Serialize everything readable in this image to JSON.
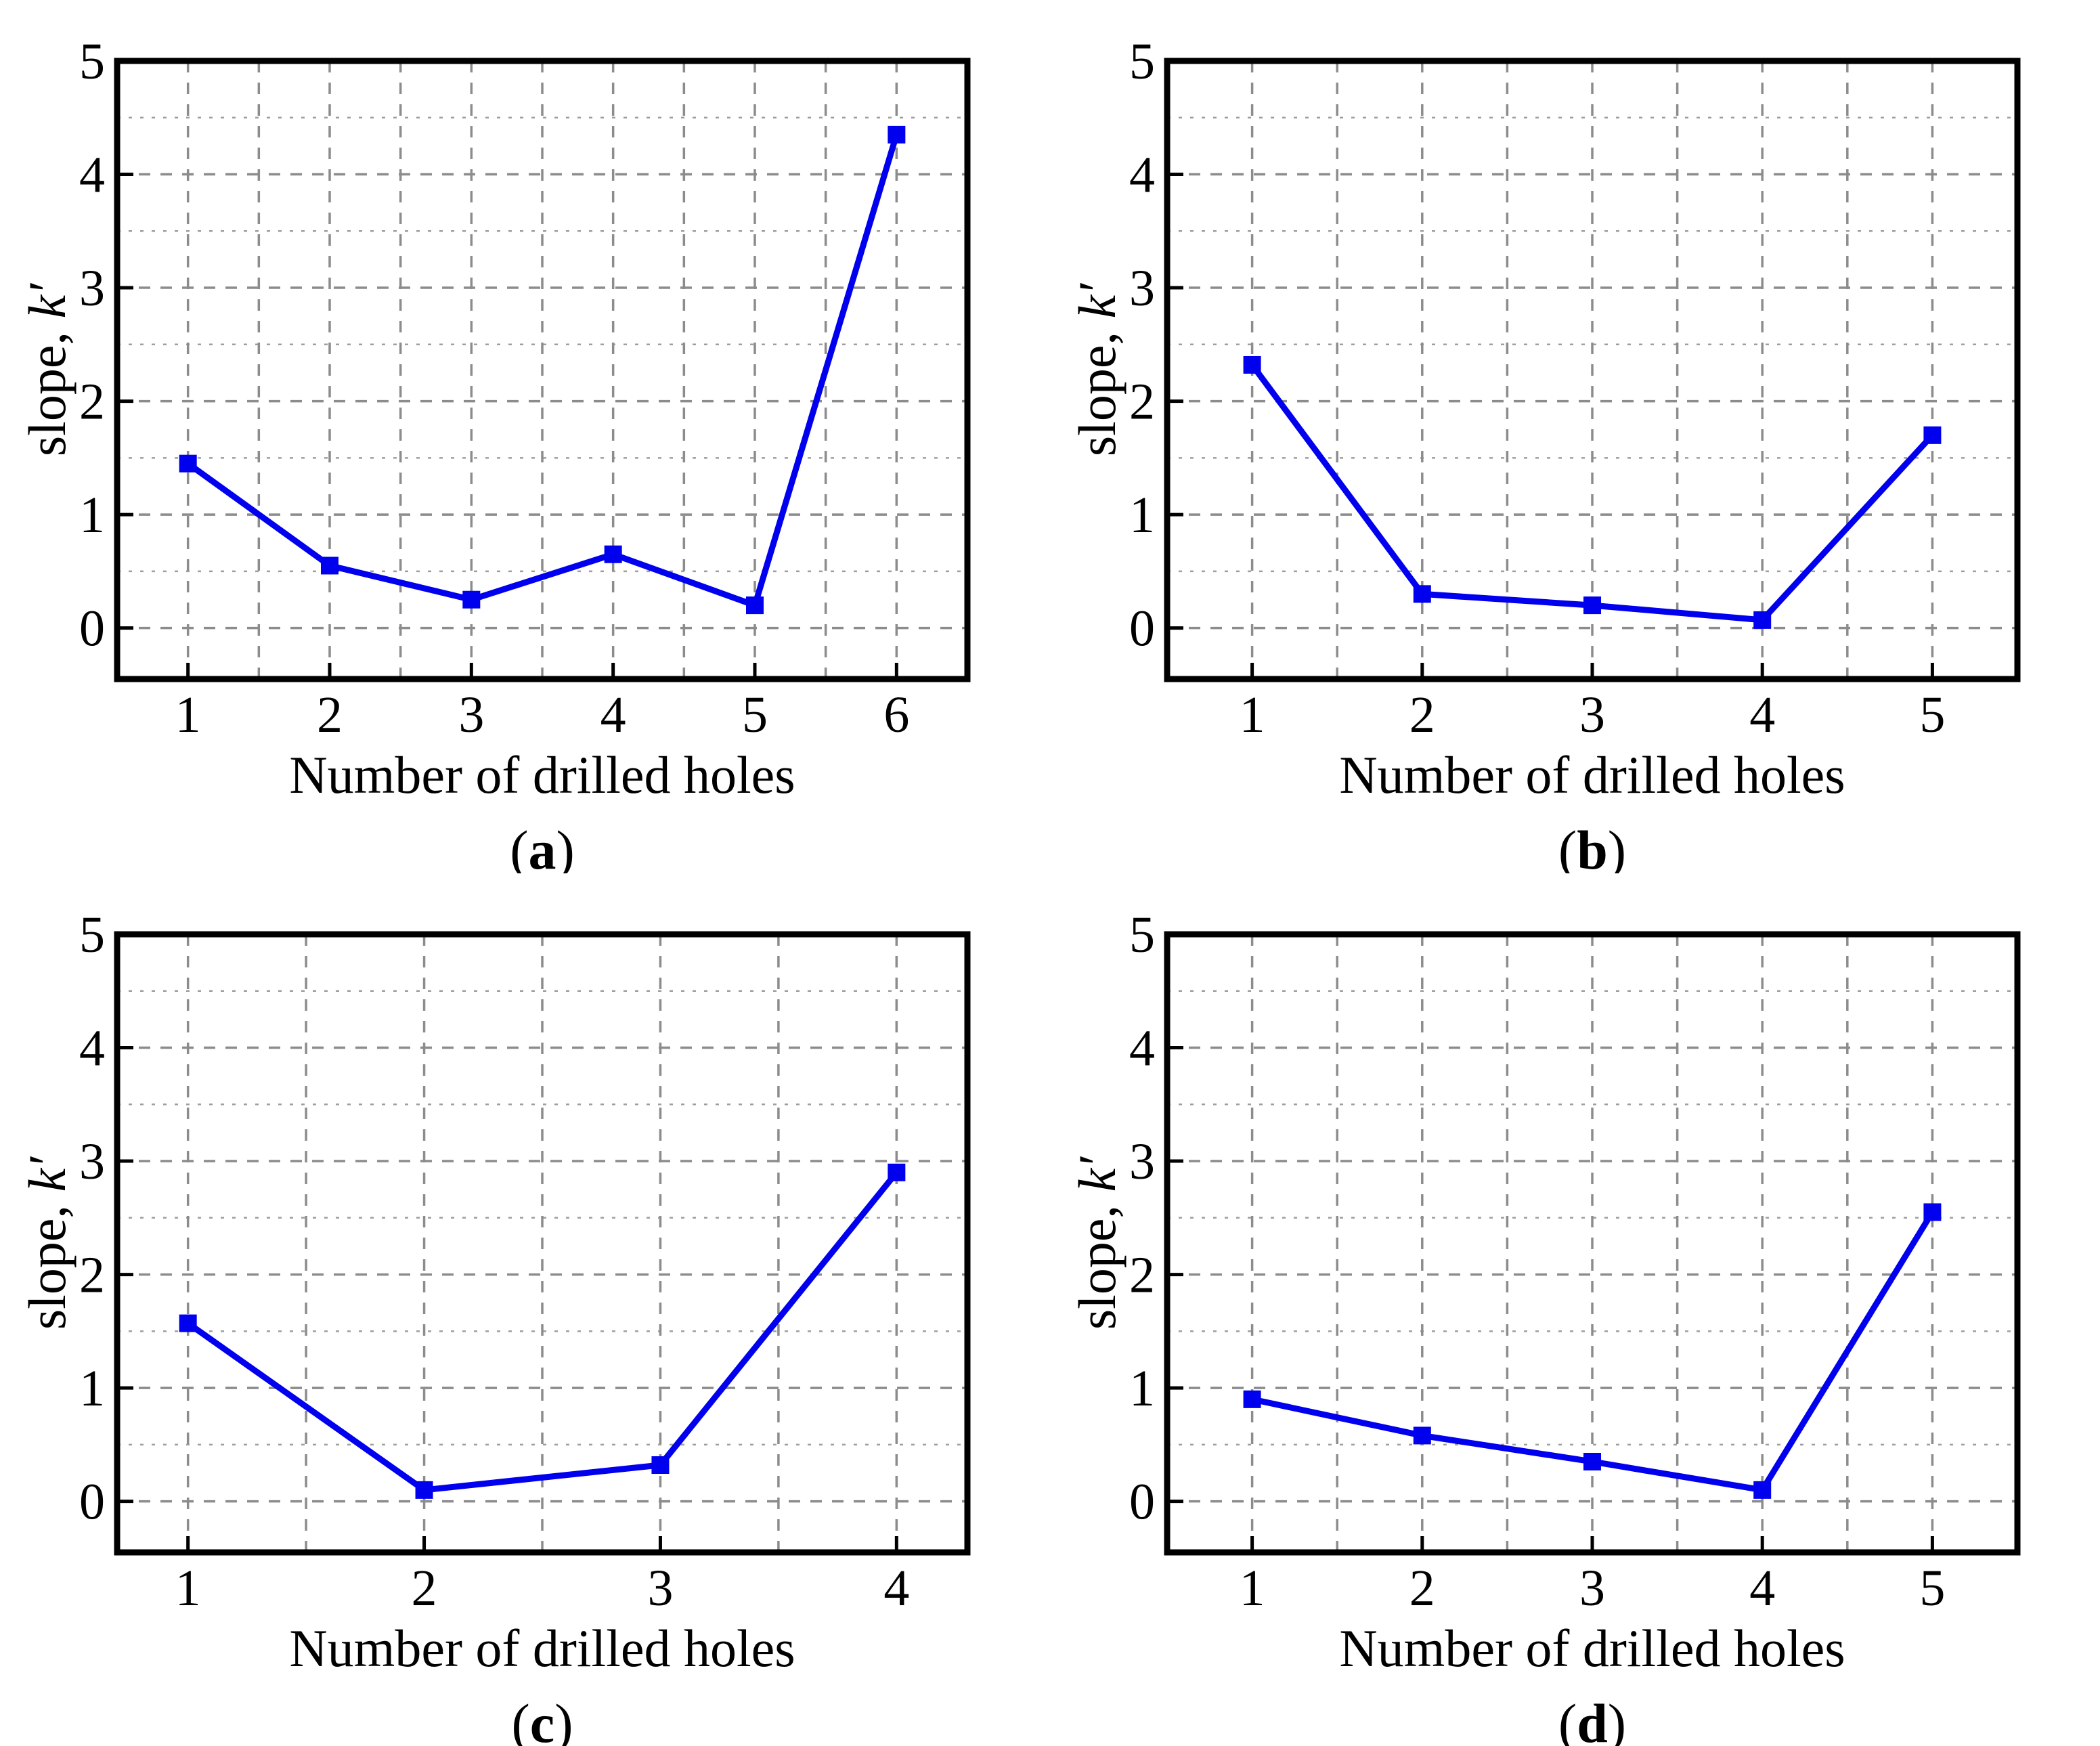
{
  "figure": {
    "background": "#ffffff",
    "xlabel": "Number of drilled holes",
    "ylabel_prefix": "slope, ",
    "ylabel_symbol": "k′"
  },
  "style": {
    "line_color": "#0000EE",
    "marker_color": "#0000EE",
    "axis_color": "#000000",
    "grid_major_color": "#8c8c8c",
    "grid_minor_color": "#9e9e9e"
  },
  "chart_data": [
    {
      "type": "line",
      "caption": "(a)",
      "xlabel": "Number of drilled holes",
      "ylabel": "slope, k′",
      "x": [
        1,
        2,
        3,
        4,
        5,
        6
      ],
      "y": [
        1.45,
        0.55,
        0.25,
        0.65,
        0.2,
        4.35
      ],
      "xticks": [
        1,
        2,
        3,
        4,
        5,
        6
      ],
      "yticks": [
        0,
        1,
        2,
        3,
        4,
        5
      ],
      "xlim": [
        0.5,
        6.5
      ],
      "ylim": [
        -0.45,
        5
      ],
      "grid": true,
      "legend": "none",
      "marker": "square"
    },
    {
      "type": "line",
      "caption": "(b)",
      "xlabel": "Number of drilled holes",
      "ylabel": "slope, k′",
      "x": [
        1,
        2,
        3,
        4,
        5
      ],
      "y": [
        2.32,
        0.3,
        0.2,
        0.07,
        1.7
      ],
      "xticks": [
        1,
        2,
        3,
        4,
        5
      ],
      "yticks": [
        0,
        1,
        2,
        3,
        4,
        5
      ],
      "xlim": [
        0.5,
        5.5
      ],
      "ylim": [
        -0.45,
        5
      ],
      "grid": true,
      "legend": "none",
      "marker": "square"
    },
    {
      "type": "line",
      "caption": "(c)",
      "xlabel": "Number of drilled holes",
      "ylabel": "slope, k′",
      "x": [
        1,
        2,
        3,
        4
      ],
      "y": [
        1.57,
        0.1,
        0.32,
        2.9
      ],
      "xticks": [
        1,
        2,
        3,
        4
      ],
      "yticks": [
        0,
        1,
        2,
        3,
        4,
        5
      ],
      "xlim": [
        0.7,
        4.3
      ],
      "ylim": [
        -0.45,
        5
      ],
      "grid": true,
      "legend": "none",
      "marker": "square"
    },
    {
      "type": "line",
      "caption": "(d)",
      "xlabel": "Number of drilled holes",
      "ylabel": "slope, k′",
      "x": [
        1,
        2,
        3,
        4,
        5
      ],
      "y": [
        0.9,
        0.58,
        0.35,
        0.1,
        2.55
      ],
      "xticks": [
        1,
        2,
        3,
        4,
        5
      ],
      "yticks": [
        0,
        1,
        2,
        3,
        4,
        5
      ],
      "xlim": [
        0.5,
        5.5
      ],
      "ylim": [
        -0.45,
        5
      ],
      "grid": true,
      "legend": "none",
      "marker": "square"
    }
  ]
}
